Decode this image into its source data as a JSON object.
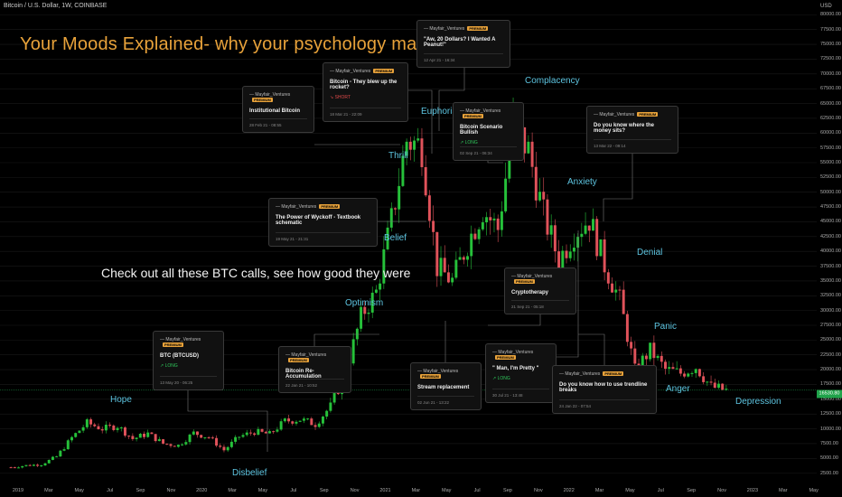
{
  "symbol_line": "Bitcoin / U.S. Dollar, 1W, COINBASE",
  "headline": "Your Moods Explained-  why your psychology matters",
  "subline": "Check out all these BTC calls, see how good they were",
  "currency": "USD",
  "last_price": "16530.80",
  "colors": {
    "up": "#26c13a",
    "down": "#e0525a",
    "headline": "#e8a23a",
    "phase": "#5dc4e0",
    "grid": "#1a1a1a"
  },
  "phases": [
    {
      "label": "Hope"
    },
    {
      "label": "Disbelief"
    },
    {
      "label": "Optimism"
    },
    {
      "label": "Belief"
    },
    {
      "label": "Thrill"
    },
    {
      "label": "Euphoria"
    },
    {
      "label": "Complacency"
    },
    {
      "label": "Anxiety"
    },
    {
      "label": "Denial"
    },
    {
      "label": "Panic"
    },
    {
      "label": "Anger"
    },
    {
      "label": "Depression"
    }
  ],
  "cards": [
    {
      "author": "Mayfair_Ventures",
      "badge": "PREMIUM",
      "title": "BTC (BTCUSD)",
      "direction": "LONG",
      "date": "13 May 20 - 06:25"
    },
    {
      "author": "Mayfair_Ventures",
      "badge": "PREMIUM",
      "title": "Bitcoin Re-Accumulation",
      "direction": "",
      "date": "22 Jan 21 - 10:52"
    },
    {
      "author": "Mayfair_Ventures",
      "badge": "PREMIUM",
      "title": "Institutional Bitcoin",
      "direction": "",
      "date": "28 Feb 21 - 08:55"
    },
    {
      "author": "Mayfair_Ventures",
      "badge": "PREMIUM",
      "title": "Bitcoin - They blew up the rocket?",
      "direction": "SHORT",
      "date": "18 Mar 21 - 22:09"
    },
    {
      "author": "Mayfair_Ventures",
      "badge": "PREMIUM",
      "title": "\"Aw, 20 Dollars? I Wanted A Peanut!\"",
      "direction": "",
      "date": "12 Apr 21 - 16:34"
    },
    {
      "author": "Mayfair_Ventures",
      "badge": "PREMIUM",
      "title": "The Power of Wyckoff - Textbook schematic",
      "direction": "",
      "date": "19 May 21 - 21:31"
    },
    {
      "author": "Mayfair_Ventures",
      "badge": "PREMIUM",
      "title": "Bitcoin Scenario Bullish",
      "direction": "LONG",
      "date": "02 Sep 21 - 06:34"
    },
    {
      "author": "Mayfair_Ventures",
      "badge": "PREMIUM",
      "title": "Cryptotherapy",
      "direction": "",
      "date": "21 Sep 21 - 05:18"
    },
    {
      "author": "Mayfair_Ventures",
      "badge": "PREMIUM",
      "title": "Stream replacement",
      "direction": "",
      "date": "02 Jun 21 - 13:22"
    },
    {
      "author": "Mayfair_Ventures",
      "badge": "PREMIUM",
      "title": "\" Man, I'm Pretty \"",
      "direction": "LONG",
      "date": "30 Jul 21 - 13:48"
    },
    {
      "author": "Mayfair_Ventures",
      "badge": "PREMIUM",
      "title": "Do you know where the money sits?",
      "direction": "",
      "date": "13 Mar 22 - 09:14"
    },
    {
      "author": "Mayfair_Ventures",
      "badge": "PREMIUM",
      "title": "Do you know how to use trendline breaks",
      "direction": "",
      "date": "24 Jan 22 - 07:54"
    }
  ],
  "chart_data": {
    "type": "line",
    "title": "Bitcoin / U.S. Dollar, 1W, COINBASE",
    "ylabel": "USD",
    "ylim": [
      0,
      82500
    ],
    "y_ticks": [
      "80000.00",
      "77500.00",
      "75000.00",
      "72500.00",
      "70000.00",
      "67500.00",
      "65000.00",
      "62500.00",
      "60000.00",
      "57500.00",
      "55000.00",
      "52500.00",
      "50000.00",
      "47500.00",
      "45000.00",
      "42500.00",
      "40000.00",
      "37500.00",
      "35000.00",
      "32500.00",
      "30000.00",
      "27500.00",
      "25000.00",
      "22500.00",
      "20000.00",
      "17500.00",
      "15000.00",
      "12500.00",
      "10000.00",
      "7500.00",
      "5000.00",
      "2500.00"
    ],
    "x_ticks": [
      "2019",
      "Mar",
      "May",
      "Jul",
      "Sep",
      "Nov",
      "2020",
      "Mar",
      "May",
      "Jul",
      "Sep",
      "Nov",
      "2021",
      "Mar",
      "May",
      "Jul",
      "Sep",
      "Nov",
      "2022",
      "Mar",
      "May",
      "Jul",
      "Sep",
      "Nov",
      "2023",
      "Mar",
      "May"
    ],
    "x": [
      "2019-01",
      "2019-02",
      "2019-03",
      "2019-04",
      "2019-05",
      "2019-06",
      "2019-07",
      "2019-08",
      "2019-09",
      "2019-10",
      "2019-11",
      "2019-12",
      "2020-01",
      "2020-02",
      "2020-03",
      "2020-04",
      "2020-05",
      "2020-06",
      "2020-07",
      "2020-08",
      "2020-09",
      "2020-10",
      "2020-11",
      "2020-12",
      "2021-01",
      "2021-02",
      "2021-03",
      "2021-04",
      "2021-05",
      "2021-06",
      "2021-07",
      "2021-08",
      "2021-09",
      "2021-10",
      "2021-11",
      "2021-12",
      "2022-01",
      "2022-02",
      "2022-03",
      "2022-04",
      "2022-05",
      "2022-06",
      "2022-07",
      "2022-08",
      "2022-09",
      "2022-10",
      "2022-11",
      "2022-12"
    ],
    "series": [
      {
        "values": [
          3500,
          3800,
          4000,
          5300,
          8500,
          11000,
          10000,
          10500,
          8300,
          9200,
          7500,
          7200,
          9300,
          8600,
          6400,
          8700,
          9500,
          9100,
          11300,
          11600,
          10800,
          13800,
          19600,
          29000,
          33100,
          45200,
          58800,
          57700,
          37300,
          35000,
          41400,
          47100,
          43800,
          61300,
          57000,
          46200,
          38500,
          43200,
          45500,
          37700,
          31800,
          19900,
          23300,
          20000,
          19400,
          20500,
          17100,
          16500
        ]
      }
    ]
  }
}
